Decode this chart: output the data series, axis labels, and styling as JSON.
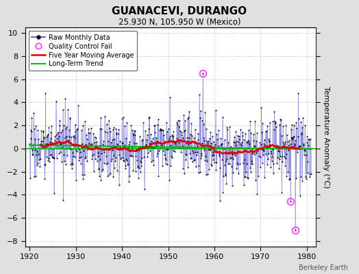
{
  "title": "GUANACEVI, DURANGO",
  "subtitle": "25.930 N, 105.950 W (Mexico)",
  "ylabel": "Temperature Anomaly (°C)",
  "credit": "Berkeley Earth",
  "xlim": [
    1919,
    1982
  ],
  "ylim": [
    -8.5,
    10.5
  ],
  "yticks": [
    -8,
    -6,
    -4,
    -2,
    0,
    2,
    4,
    6,
    8,
    10
  ],
  "xticks": [
    1920,
    1930,
    1940,
    1950,
    1960,
    1970,
    1980
  ],
  "bg_color": "#e0e0e0",
  "plot_bg_color": "#ffffff",
  "raw_line_color": "#4444cc",
  "raw_marker_color": "#000000",
  "qc_color": "#ff44ff",
  "moving_avg_color": "#dd0000",
  "trend_color": "#00bb00",
  "seed": 17,
  "start_year": 1920,
  "n_months": 732,
  "qc_fail_times": [
    1957.5,
    1976.5,
    1977.5
  ],
  "qc_fail_values": [
    6.5,
    -4.6,
    -7.1
  ]
}
